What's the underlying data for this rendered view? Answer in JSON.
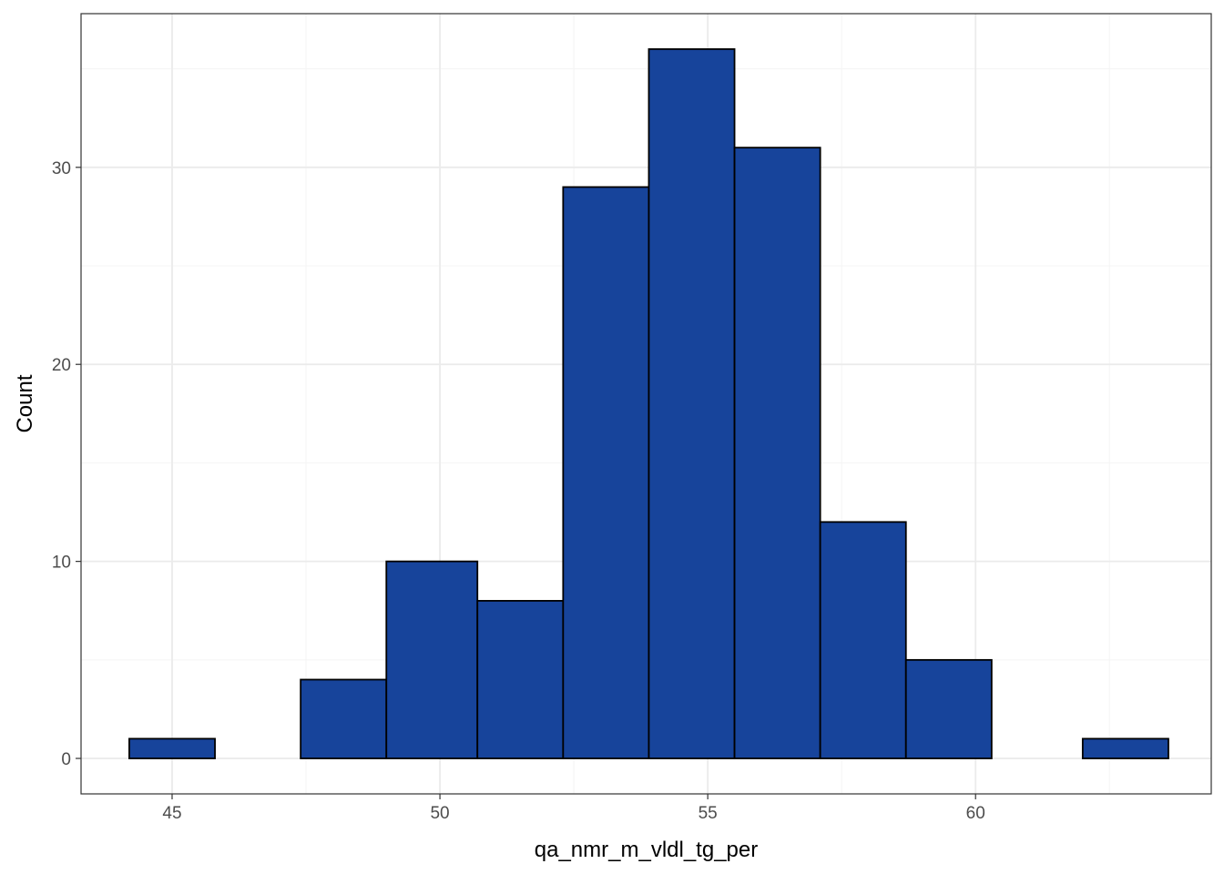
{
  "chart_data": {
    "type": "bar",
    "subtype": "histogram",
    "xlabel": "qa_nmr_m_vldl_tg_per",
    "ylabel": "Count",
    "xlim": [
      43.3,
      64.4
    ],
    "ylim": [
      -1.8,
      37.8
    ],
    "x_ticks": [
      45,
      50,
      55,
      60
    ],
    "y_ticks": [
      0,
      10,
      20,
      30
    ],
    "grid": true,
    "legend": "none",
    "bins": [
      {
        "x0": 44.2,
        "x1": 45.8,
        "count": 1
      },
      {
        "x0": 45.8,
        "x1": 47.4,
        "count": 0
      },
      {
        "x0": 47.4,
        "x1": 49.0,
        "count": 4
      },
      {
        "x0": 49.0,
        "x1": 50.7,
        "count": 10
      },
      {
        "x0": 50.7,
        "x1": 52.3,
        "count": 8
      },
      {
        "x0": 52.3,
        "x1": 53.9,
        "count": 29
      },
      {
        "x0": 53.9,
        "x1": 55.5,
        "count": 36
      },
      {
        "x0": 55.5,
        "x1": 57.1,
        "count": 31
      },
      {
        "x0": 57.1,
        "x1": 58.7,
        "count": 12
      },
      {
        "x0": 58.7,
        "x1": 60.3,
        "count": 5
      },
      {
        "x0": 60.3,
        "x1": 62.0,
        "count": 0
      },
      {
        "x0": 62.0,
        "x1": 63.6,
        "count": 1
      }
    ],
    "colors": {
      "bar_fill": "#17449b",
      "bar_stroke": "#000000",
      "grid_major": "#ebebeb",
      "grid_minor": "#f5f5f5",
      "panel_border": "#333333"
    }
  }
}
